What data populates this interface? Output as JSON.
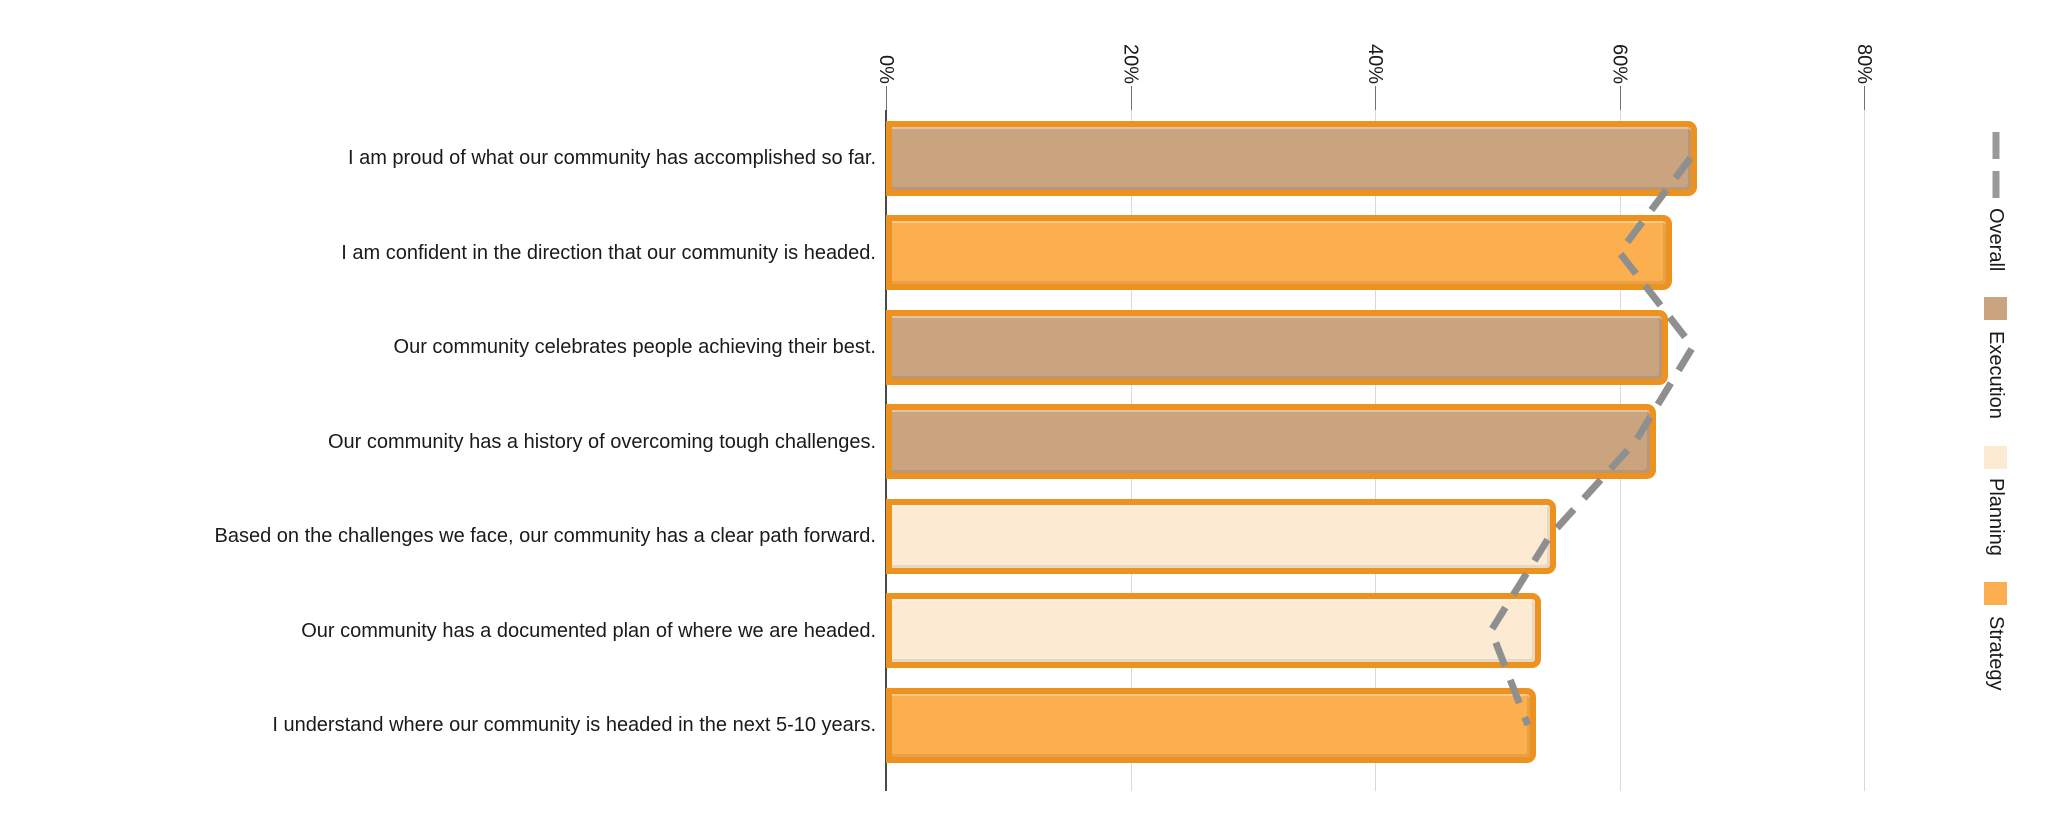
{
  "chart_data": {
    "type": "bar",
    "orientation": "horizontal",
    "title": "",
    "x_axis": {
      "tick_labels": [
        "0%",
        "20%",
        "40%",
        "60%",
        "80%"
      ],
      "tick_values": [
        0,
        20,
        40,
        60,
        80
      ],
      "range": [
        0,
        80
      ],
      "labels_rotated_90deg": true
    },
    "grid": "vertical-only",
    "legend_position": "right-vertical-rotated",
    "rows": [
      {
        "label": "I am proud of what our community has accomplished so far.",
        "category": "Execution",
        "value": 66.3,
        "overall": 65.8
      },
      {
        "label": "I am confident in the direction that our community is headed.",
        "category": "Strategy",
        "value": 64.3,
        "overall": 60.0
      },
      {
        "label": "Our community celebrates people achieving their best.",
        "category": "Execution",
        "value": 64.0,
        "overall": 66.0
      },
      {
        "label": "Our community has a history of overcoming tough challenges.",
        "category": "Execution",
        "value": 63.0,
        "overall": 61.3
      },
      {
        "label": "Based on the challenges we face, our community has a clear path forward.",
        "category": "Planning",
        "value": 54.8,
        "overall": 54.3
      },
      {
        "label": "Our community has a documented plan of where we are headed.",
        "category": "Planning",
        "value": 53.6,
        "overall": 49.5
      },
      {
        "label": "I understand where our community is headed in the next 5-10 years.",
        "category": "Strategy",
        "value": 53.2,
        "overall": 52.5
      }
    ],
    "legend": [
      {
        "label": "Overall",
        "symbol": "dashed-line",
        "color": "#999999"
      },
      {
        "label": "Execution",
        "symbol": "square",
        "color": "#c9a47e"
      },
      {
        "label": "Planning",
        "symbol": "square",
        "color": "#fcebd2"
      },
      {
        "label": "Strategy",
        "symbol": "square",
        "color": "#fbaf4e"
      }
    ]
  },
  "colors": {
    "bar_border": "#ed921f",
    "execution_fill": "#c9a47e",
    "planning_fill": "#fcebd2",
    "strategy_fill": "#fbaf4e",
    "overall_line": "#8f8f8f",
    "gridline": "#d9d9d9",
    "axis_line": "#4a4a4a",
    "tick": "#707070",
    "label_text": "#1a1a1a",
    "background": "#ffffff"
  }
}
